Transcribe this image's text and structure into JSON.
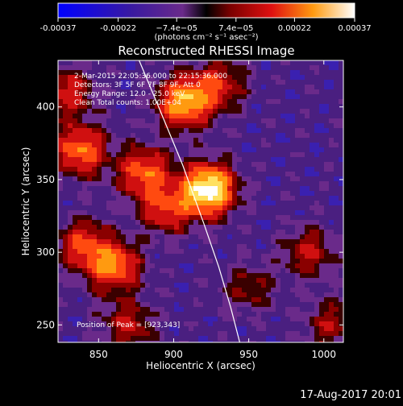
{
  "colorbar": {
    "ticks": [
      "-0.00037",
      "-0.00022",
      "−7.4e−05",
      "7.4e−05",
      "0.00022",
      "0.00037"
    ],
    "tick_values": [
      -0.00037,
      -0.00022,
      -7.4e-05,
      7.4e-05,
      0.00022,
      0.00037
    ],
    "range": [
      -0.00037,
      0.00037
    ],
    "unit": "(photons cm⁻² s⁻¹ asec⁻²)"
  },
  "chart_data": {
    "type": "heatmap",
    "title": "Reconstructed RHESSI Image",
    "xlabel": "Heliocentric X (arcsec)",
    "ylabel": "Heliocentric Y (arcsec)",
    "xlim": [
      823,
      1013
    ],
    "ylim": [
      238,
      432
    ],
    "x_ticks": [
      850,
      900,
      950,
      1000
    ],
    "y_ticks": [
      250,
      300,
      350,
      400
    ],
    "grid": false,
    "annotations": [
      "2-Mar-2015 22:05:36.000 to 22:15:36.000",
      "Detectors: 3F 5F 6F 7F 8F 9F, Att 0",
      "Energy Range: 12.0 - 25.0 keV",
      "Clean    Total counts: 1.00E+04"
    ],
    "peak_label": "Position of Peak = [923,343]",
    "peak": [
      923,
      343
    ],
    "limb_curve": [
      [
        877,
        432
      ],
      [
        890,
        400
      ],
      [
        906,
        360
      ],
      [
        920,
        320
      ],
      [
        930,
        290
      ],
      [
        938,
        262
      ],
      [
        944,
        238
      ]
    ],
    "sources": [
      {
        "x": 923,
        "y": 343,
        "intensity": 1.0
      },
      {
        "x": 907,
        "y": 403,
        "intensity": 0.75
      },
      {
        "x": 880,
        "y": 355,
        "intensity": 0.55
      },
      {
        "x": 838,
        "y": 370,
        "intensity": 0.6
      },
      {
        "x": 860,
        "y": 290,
        "intensity": 0.6
      },
      {
        "x": 840,
        "y": 305,
        "intensity": 0.45
      },
      {
        "x": 895,
        "y": 330,
        "intensity": 0.45
      },
      {
        "x": 930,
        "y": 415,
        "intensity": 0.4
      },
      {
        "x": 830,
        "y": 410,
        "intensity": 0.4
      },
      {
        "x": 990,
        "y": 300,
        "intensity": 0.35
      },
      {
        "x": 1005,
        "y": 250,
        "intensity": 0.3
      },
      {
        "x": 870,
        "y": 250,
        "intensity": 0.35
      },
      {
        "x": 950,
        "y": 275,
        "intensity": 0.25
      }
    ]
  },
  "timestamp": "17-Aug-2017 20:01"
}
